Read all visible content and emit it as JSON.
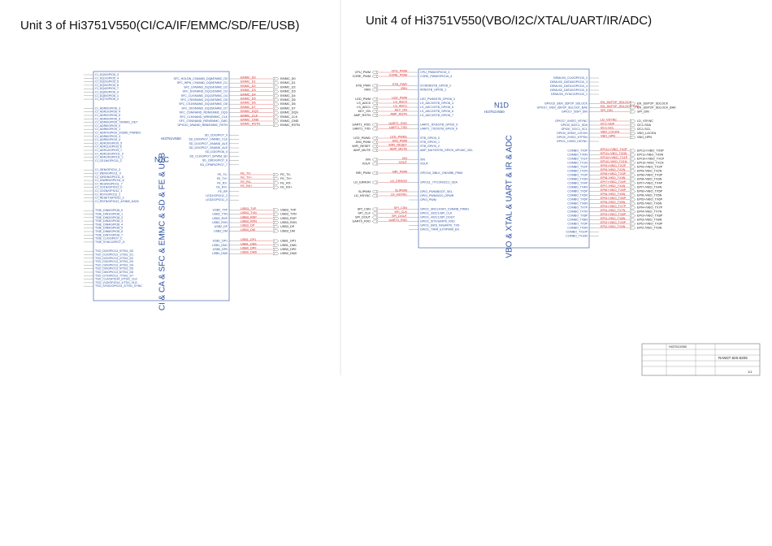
{
  "units": [
    {
      "title": "Unit 3 of Hi3751V550(CI/CA/IF/EMMC/SD/FE/USB)",
      "chip_ref": "N1C",
      "chip_model": "Hi3751V550",
      "function_label": "CI & CA & SFC & EMMC & SD & FE & USB",
      "left_groups": [
        [
          {
            "name": "CI_DQ0/GPIO5_3"
          },
          {
            "name": "CI_DQ1/GPIO5_4"
          },
          {
            "name": "CI_DQ2/GPIO5_5"
          },
          {
            "name": "CI_DQ3/GPIO5_6"
          },
          {
            "name": "CI_DQ4/GPIO5_7"
          },
          {
            "name": "CI_DQ5/GPIO6_0"
          },
          {
            "name": "CI_DQ6/GPIO6_1"
          },
          {
            "name": "CI_DQ7/GPIO6_2"
          }
        ],
        [
          {
            "name": "CI_ADR0/GPIO6_3"
          },
          {
            "name": "CI_ADR1/GPIO6_4"
          },
          {
            "name": "CI_ADR2/GPIO6_5"
          },
          {
            "name": "CI_ADR3/GPIO6_6"
          },
          {
            "name": "CI_ADR4/GPIO6_7/EMMC_DET"
          },
          {
            "name": "CI_ADR5/GPIO9_0"
          },
          {
            "name": "CI_ADR6/GPIO9_1"
          },
          {
            "name": "CI_ADR7/GPIO9_2/SIM0_PWREN"
          },
          {
            "name": "CI_ADR8/GPIO9_3"
          },
          {
            "name": "CI_ADR9/GPIO9_4"
          },
          {
            "name": "CI_ADR10/GPIO9_5"
          },
          {
            "name": "CI_ADR11/GPIO9_6"
          },
          {
            "name": "CI_ADR12/GPIO9_7"
          },
          {
            "name": "CI_ADR13/GPIO11_0"
          },
          {
            "name": "CI_ADR14/GPIO11_1"
          },
          {
            "name": "CI_CE1N/GPIO11_2"
          }
        ],
        [
          {
            "name": "CI_OEN/GPIO11_3"
          },
          {
            "name": "CI_WEN/GPIO11_4"
          },
          {
            "name": "CI_IORDN/GPIO11_5"
          },
          {
            "name": "CI_IOWRN/GPIO11_6"
          },
          {
            "name": "CI_REGN/GPIO11_7"
          },
          {
            "name": "CI_CD1N/GPIO12_0"
          },
          {
            "name": "CI_CD2N/GPIO12_1"
          },
          {
            "name": "CI_RDY/GPIO12_2"
          },
          {
            "name": "CI_RESET/GPIO12_3"
          },
          {
            "name": "CI_RSTN/GPIO12_4/SIM0_DATA"
          }
        ],
        [
          {
            "name": "TSIE_DIN0/GPIO8_0"
          },
          {
            "name": "TSIE_DIN1/GPIO8_1"
          },
          {
            "name": "TSIE_DIN2/GPIO8_2"
          },
          {
            "name": "TSIE_DIN3/GPIO8_3"
          },
          {
            "name": "TSIE_DIN4/GPIO8_4"
          },
          {
            "name": "TSIE_DIN5/GPIO8_5"
          },
          {
            "name": "TSIE_DIN6/GPIO8_6"
          },
          {
            "name": "TSIE_DIN7/GPIO8_7"
          },
          {
            "name": "TSIE_CLK/GPIO7_C"
          },
          {
            "name": "TSIE_SYNC/GPIO7_D"
          }
        ],
        [
          {
            "name": "TSO_D0/GPIO13_0/TSI1_D0"
          },
          {
            "name": "TSO_D1/GPIO13_1/TSI1_D1"
          },
          {
            "name": "TSO_D2/GPIO13_2/TSI1_D2"
          },
          {
            "name": "TSO_D3/GPIO13_3/TSI1_D3"
          },
          {
            "name": "TSO_D4/GPIO13_4/TSI1_D4"
          },
          {
            "name": "TSO_D5/GPIO13_5/TSI1_D5"
          },
          {
            "name": "TSO_D6/GPIO13_6/TSI1_D6"
          },
          {
            "name": "TSO_D7/GPIO13_7/TSI1_D7"
          },
          {
            "name": "TSO_CLK/GPIO14_0/TSI1_CLK"
          },
          {
            "name": "TSO_VLD/GPIO14_1/TSI1_VLD"
          },
          {
            "name": "TSO_SYNC/GPIO14_2/TSI1_SYNC"
          }
        ]
      ],
      "right_groups": [
        [
          {
            "name": "SFC_HOLDN_CI/NAND_DQ8/EMMC_D0",
            "net": "EMMC_D0"
          },
          {
            "name": "SFC_WPN_CI/NAND_DQ9/EMMC_D1",
            "net": "EMMC_D1"
          },
          {
            "name": "SFC_DI/NAND_DQ10/EMMC_D2",
            "net": "EMMC_D2"
          },
          {
            "name": "SFC_DO/NAND_DQ11/EMMC_D3",
            "net": "EMMC_D3"
          },
          {
            "name": "SFC_CLK/NAND_DQ12/EMMC_D4",
            "net": "EMMC_D4"
          },
          {
            "name": "SFC_CSN/NAND_DQ13/EMMC_D5",
            "net": "EMMC_D5"
          },
          {
            "name": "SFC_CS1N/NAND_DQ14/EMMC_D6",
            "net": "EMMC_D6"
          },
          {
            "name": "SFC_DIO/NAND_DQ15/EMMC_D7",
            "net": "EMMC_D7"
          },
          {
            "name": "SFC_CSN/NAND_RDN/EMMC_DQS",
            "net": "EMMC_DQS"
          },
          {
            "name": "SFC_CLK/NAND_WRN/EMMC_CLK",
            "net": "EMMC_CLK"
          },
          {
            "name": "SFC_CSN/NAND_REN/EMMC_CMD",
            "net": "EMMC_CMD"
          },
          {
            "name": "GPIO10_3/NAND_RBN/EMMC_RSTN",
            "net": "EMMC_RSTN"
          }
        ],
        [
          {
            "name": "SD_CD/GPIO7_0"
          },
          {
            "name": "SD_D0/GPIO7_1/NAND_CLE"
          },
          {
            "name": "SD_D1/GPIO7_2/NAND_ALE"
          },
          {
            "name": "SD_D2/GPIO7_3/NAND_ALE"
          },
          {
            "name": "SD_D3/GPIO6_5"
          },
          {
            "name": "SD_CLK/GPIO7_5/PWM_SD"
          },
          {
            "name": "SD_CMD/GPIO7_6"
          },
          {
            "name": "SD_CPWR/GPIO7_7"
          }
        ],
        [
          {
            "name": "FE_TX-",
            "net": "FE_TX-"
          },
          {
            "name": "FE_TX+",
            "net": "FE_TX+"
          },
          {
            "name": "FE_RX-",
            "net": "FE_RX-"
          },
          {
            "name": "FE_RX+",
            "net": "FE_RX+"
          },
          {
            "name": "FE_RP"
          },
          {
            "name": "LED1/GPIO11_2"
          },
          {
            "name": "LED2/GPIO11_3"
          }
        ],
        [
          {
            "name": "USB2_TXP",
            "net": "USB3_TXP"
          },
          {
            "name": "USB2_TXN",
            "net": "USB3_TXN"
          },
          {
            "name": "USB2_RXP",
            "net": "USB3_RXP"
          },
          {
            "name": "USB2_RXN",
            "net": "USB3_RXN"
          },
          {
            "name": "USB2_DP",
            "net": "USB3_DP"
          },
          {
            "name": "USB2_DM",
            "net": "USB3_DM"
          }
        ],
        [
          {
            "name": "USB1_DP1",
            "net": "USB1_DP1"
          },
          {
            "name": "USB1_DM1",
            "net": "USB1_DM1"
          },
          {
            "name": "USB0_DP0",
            "net": "USB0_DP0"
          },
          {
            "name": "USB0_DM0",
            "net": "USB0_DM0"
          }
        ]
      ]
    },
    {
      "title": "Unit 4 of Hi3751V550(VBO/I2C/XTAL/UART/IR/ADC)",
      "chip_ref": "N1D",
      "chip_model": "Hi3751V550",
      "function_label": "VBO & XTAL & UART & IR & ADC",
      "left_groups": [
        [
          {
            "name": "CPU_PWM/GPIO15_3",
            "net": "CPU_PWM"
          },
          {
            "name": "CORE_PWM/GPIO15_4",
            "net": "CORE_PWM"
          }
        ],
        [
          {
            "name": "ST/ADB/STB_GPIO8_2",
            "net": "STB_PWR"
          },
          {
            "name": "IRIN/STB_GPIO8_1",
            "net": "IRIN"
          }
        ],
        [
          {
            "name": "LED_PWM/STB_GPIO8_3",
            "net": "LED_PWM"
          },
          {
            "name": "LS_ADC0/STB_GPIO8_4",
            "net": "LS_ADC0"
          },
          {
            "name": "LS_ADC1/STB_GPIO8_5",
            "net": "LS_ADC1"
          },
          {
            "name": "LS_ADC2/STB_GPIO8_6",
            "net": "KEY_ON"
          },
          {
            "name": "LS_ADC3/STB_GPIO8_7",
            "net": "AMP_RSTN"
          }
        ],
        [
          {
            "name": "UART1_RXD/STB_GPIO9_5",
            "net": "UART1_RXD"
          },
          {
            "name": "UART1_TXD/STB_GPIO9_6",
            "net": "UART1_TXD"
          }
        ],
        [
          {
            "name": "STB_GPIO9_0",
            "net": "LED_PWM1"
          },
          {
            "name": "STB_GPIO9_1",
            "net": "DIM_PWM"
          },
          {
            "name": "STB_GPIO9_2",
            "net": "WIFI_RESET"
          },
          {
            "name": "AMP_MUTE/STB_GPIO9_4/PUNC_SEL",
            "net": "AMP_MUTE"
          }
        ],
        [
          {
            "name": "XIN",
            "net": "XIN"
          },
          {
            "name": "XOUT",
            "net": "XOUT"
          }
        ],
        [
          {
            "name": "GPIO16_3/BLK_ON/VBBI_PWM",
            "net": "BRI_PWM"
          }
        ],
        [
          {
            "name": "GPIO11_7/TCON/I2C2_SDA",
            "net": "LD_ERROR"
          }
        ],
        [
          {
            "name": "GPIO_PWM/BOOT_SEL",
            "net": "SLIPWM"
          },
          {
            "name": "GPIO_PWM/I2C0_DPWR",
            "net": "LD_HSYNC"
          },
          {
            "name": "GPIO_PWM"
          }
        ],
        [
          {
            "name": "GPIO1_SRCLK/SPI_CSN/RB_PWM1",
            "net": "SPI_CSN"
          },
          {
            "name": "GPIO1_3/I2C1/SPI_CLK",
            "net": "SPI_CLK"
          },
          {
            "name": "GPIO1_4/I2C1/SPI_DOUT",
            "net": "SPI_DOUT"
          },
          {
            "name": "GPIO1_5/TX/UART0_RXD",
            "net": "UART0_RXD"
          },
          {
            "name": "GPIO1_6/RS_IN/UART0_TXD"
          },
          {
            "name": "GPIO1_7/IRR_EXT/PWM_EN"
          }
        ]
      ],
      "right_groups": [
        [
          {
            "name": "DEMUX0_CLK/GPIO10_2"
          },
          {
            "name": "DEMUX0_DATA0/GPIO10_3"
          },
          {
            "name": "DEMUX0_DATA1/GPIO10_4"
          },
          {
            "name": "DEMUX0_DATA2/GPIO10_5"
          },
          {
            "name": "DEMUX0_SYNC/GPIO10_1"
          }
        ],
        [
          {
            "name": "GPIO16_3/EN_3DP2P_SDLOCK",
            "net": "EN_3D/P2P_SDLOCK"
          },
          {
            "name": "GPIO17_4/EN_3DP2P_SDLOCK_BAK",
            "net": "EN_3D/P2P_SDLOCK_BAK"
          },
          {
            "name": "GPIO17_5/SPI_DIN",
            "net": "SPI_DIN"
          }
        ],
        [
          {
            "name": "GPIO17_0/VBO_VSYNC",
            "net": "LD_VSYNC"
          },
          {
            "name": "GPIO0_6/I2C1_SDA",
            "net": "I2C1-SDA"
          },
          {
            "name": "GPIO0_7/I2C1_SCL",
            "net": "I2C1-SCL"
          },
          {
            "name": "GPIO0_3/VBO_LOCKN",
            "net": "VBO_LOCKN"
          },
          {
            "name": "GPIO0_2/VBO_HTPDN",
            "net": "VBO_HPN"
          },
          {
            "name": "GPIO1_1/VBO_HSYNC"
          }
        ],
        [
          {
            "name": "COMBO_TX0P",
            "net": "EPI11+/VBO_TX0P"
          },
          {
            "name": "COMBO_TX0N",
            "net": "EPI11-/VBO_TX0N"
          },
          {
            "name": "COMBO_TX1P",
            "net": "EPI10+/VBO_TX1P"
          },
          {
            "name": "COMBO_TX1N",
            "net": "EPI10-/VBO_TX1N"
          },
          {
            "name": "COMBO_TX2P",
            "net": "EPI9+/VBO_TX2P"
          },
          {
            "name": "COMBO_TX2N",
            "net": "EPI9-/VBO_TX2N"
          },
          {
            "name": "COMBO_TX3P",
            "net": "EPI8+/VBO_TX3P"
          },
          {
            "name": "COMBO_TX3N",
            "net": "EPI8-/VBO_TX3N"
          },
          {
            "name": "COMBO_TX4P",
            "net": "EPI7+/VBO_TX4P"
          },
          {
            "name": "COMBO_TX4N",
            "net": "EPI7-/VBO_TX4N"
          },
          {
            "name": "COMBO_TX5P",
            "net": "EPI6+/VBO_TX5P"
          },
          {
            "name": "COMBO_TX5N",
            "net": "EPI6-/VBO_TX5N"
          },
          {
            "name": "COMBO_TX6P",
            "net": "EPI5+/VBO_TX6P"
          },
          {
            "name": "COMBO_TX6N",
            "net": "EPI5-/VBO_TX6N"
          },
          {
            "name": "COMBO_TX7P",
            "net": "EPI4+/VBO_TX7P"
          },
          {
            "name": "COMBO_TX7N",
            "net": "EPI4-/VBO_TX7N"
          },
          {
            "name": "COMBO_TX8P",
            "net": "EPI3+/VBO_TX8P"
          },
          {
            "name": "COMBO_TX8N",
            "net": "EPI3-/VBO_TX8N"
          },
          {
            "name": "COMBO_TX9P",
            "net": "EPI2+/VBO_TX9P"
          },
          {
            "name": "COMBO_TX9N",
            "net": "EPI2-/VBO_TX9N"
          },
          {
            "name": "COMBO_TX10P"
          },
          {
            "name": "COMBO_TX10N"
          }
        ]
      ]
    }
  ],
  "title_block": {
    "drawing_no": "RAM27.820.8205",
    "project": "Hi3751V550",
    "sheet": "1/1"
  }
}
